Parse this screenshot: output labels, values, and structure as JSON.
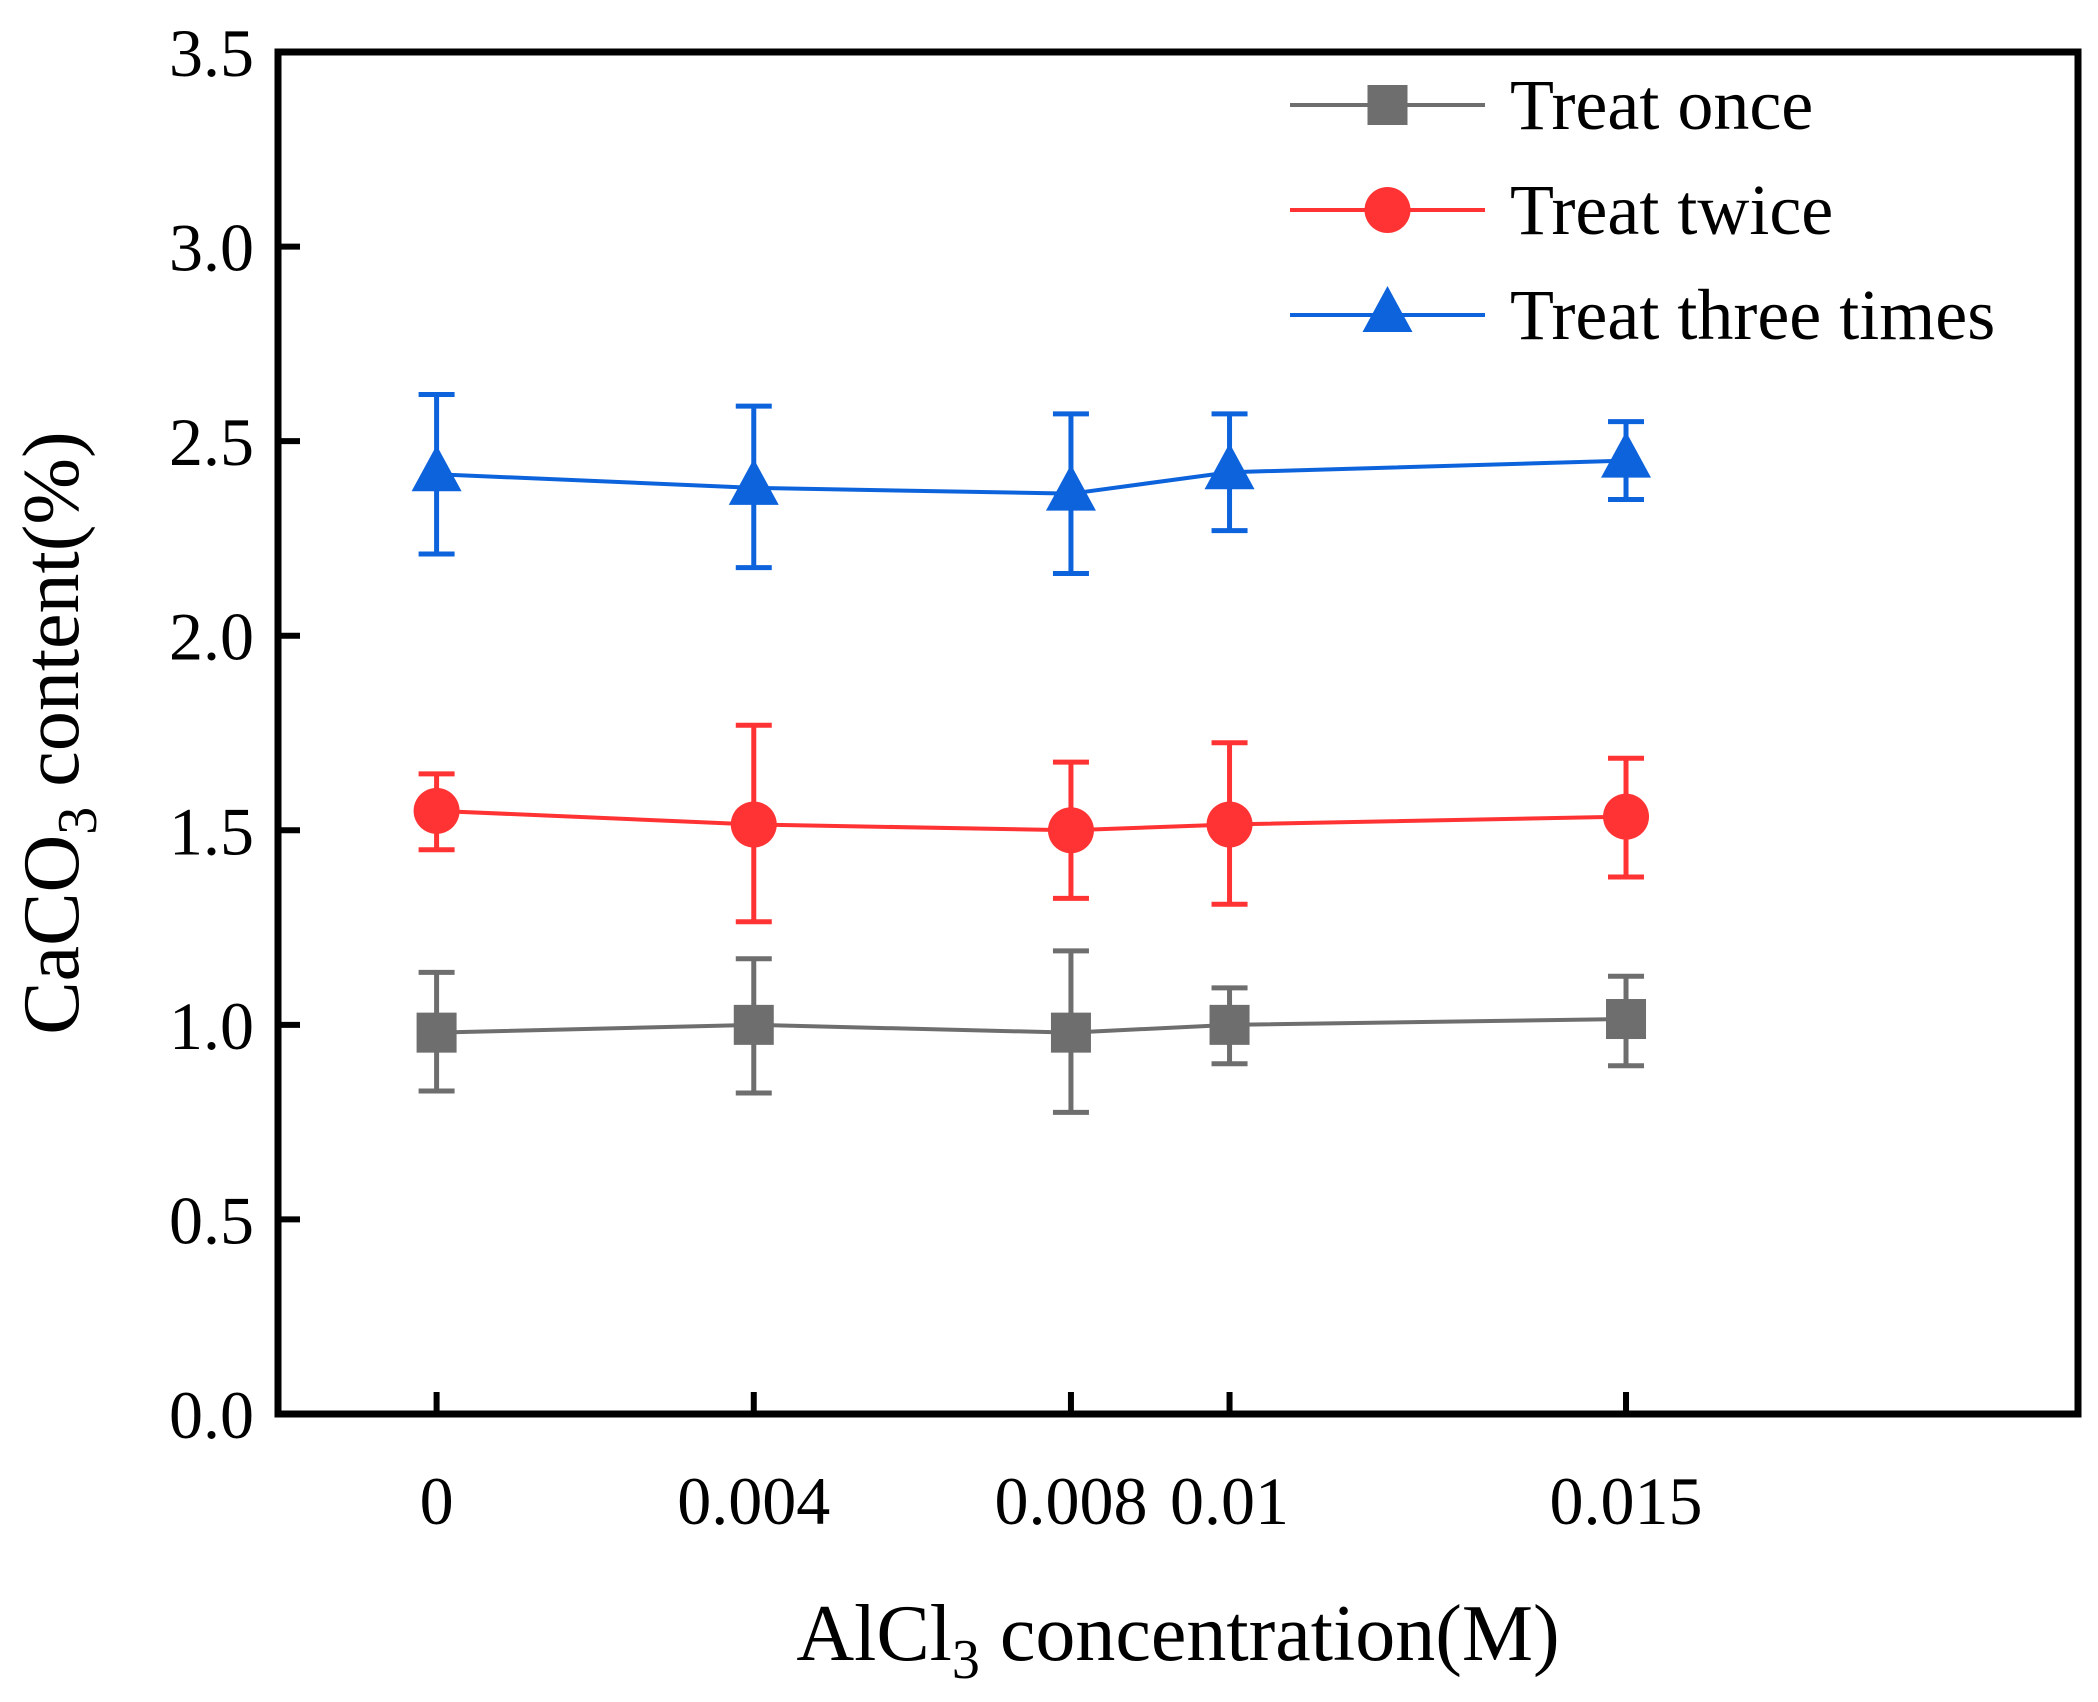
{
  "chart_data": {
    "type": "line",
    "title": "",
    "xlabel": {
      "main": "AlCl",
      "sub": "3",
      "rest": " concentration(M)"
    },
    "ylabel": {
      "main": "CaCO",
      "sub": "3",
      "rest": " content(%)"
    },
    "x": [
      0,
      0.004,
      0.008,
      0.01,
      0.015
    ],
    "x_tick_labels": [
      "0",
      "0.004",
      "0.008",
      "0.01",
      "0.015"
    ],
    "xlim": [
      -0.002,
      0.0207
    ],
    "ylim": [
      0,
      3.5
    ],
    "y_ticks": [
      0.0,
      0.5,
      1.0,
      1.5,
      2.0,
      2.5,
      3.0,
      3.5
    ],
    "y_tick_labels": [
      "0.0",
      "0.5",
      "1.0",
      "1.5",
      "2.0",
      "2.5",
      "3.0",
      "3.5"
    ],
    "grid": false,
    "legend_position": "top-right",
    "series": [
      {
        "name": "Treat once",
        "marker": "square",
        "color": "#6e6e6e",
        "values": [
          0.98,
          1.0,
          0.98,
          1.0,
          1.015
        ],
        "err_upper": [
          1.135,
          1.17,
          1.19,
          1.095,
          1.125
        ],
        "err_lower": [
          0.83,
          0.825,
          0.775,
          0.9,
          0.895
        ]
      },
      {
        "name": "Treat twice",
        "marker": "circle",
        "color": "#ff3333",
        "values": [
          1.55,
          1.515,
          1.5,
          1.515,
          1.535
        ],
        "err_upper": [
          1.645,
          1.77,
          1.675,
          1.725,
          1.685
        ],
        "err_lower": [
          1.45,
          1.265,
          1.325,
          1.31,
          1.38
        ]
      },
      {
        "name": "Treat three times",
        "marker": "triangle",
        "color": "#0d63dc",
        "values": [
          2.415,
          2.38,
          2.365,
          2.42,
          2.45
        ],
        "err_upper": [
          2.62,
          2.59,
          2.57,
          2.57,
          2.55
        ],
        "err_lower": [
          2.21,
          2.175,
          2.16,
          2.27,
          2.35
        ]
      }
    ]
  }
}
